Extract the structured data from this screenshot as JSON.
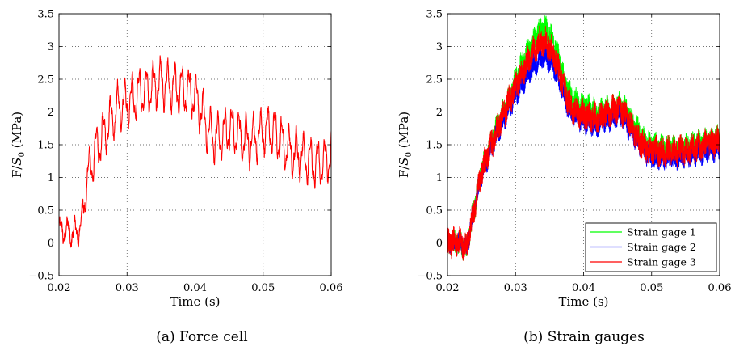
{
  "chart_data": [
    {
      "type": "line",
      "caption": "(a) Force cell",
      "xlabel": "Time (s)",
      "ylabel": "F/S0 (MPa)",
      "ylabel_main": "F/",
      "ylabel_sym": "S",
      "ylabel_sub": "0",
      "ylabel_unit": " (MPa)",
      "xlim": [
        0.02,
        0.06
      ],
      "ylim": [
        -0.5,
        3.5
      ],
      "xticks": [
        0.02,
        0.03,
        0.04,
        0.05,
        0.06
      ],
      "xtick_labels": [
        "0.02",
        "0.03",
        "0.04",
        "0.05",
        "0.06"
      ],
      "yticks": [
        -0.5,
        0,
        0.5,
        1,
        1.5,
        2,
        2.5,
        3,
        3.5
      ],
      "ytick_labels": [
        "−0.5",
        "0",
        "0.5",
        "1",
        "1.5",
        "2",
        "2.5",
        "3",
        "3.5"
      ],
      "grid": true,
      "series": [
        {
          "color": "#ff0000",
          "oscillation_amplitude": 0.3,
          "envelope": {
            "x": [
              0.02,
              0.021,
              0.022,
              0.023,
              0.0233,
              0.024,
              0.025,
              0.026,
              0.027,
              0.028,
              0.029,
              0.03,
              0.031,
              0.032,
              0.033,
              0.034,
              0.035,
              0.036,
              0.037,
              0.038,
              0.039,
              0.04,
              0.041,
              0.042,
              0.043,
              0.044,
              0.045,
              0.046,
              0.047,
              0.048,
              0.049,
              0.05,
              0.051,
              0.052,
              0.053,
              0.054,
              0.055,
              0.056,
              0.057,
              0.058,
              0.059,
              0.06
            ],
            "y": [
              0.2,
              0.18,
              0.15,
              0.2,
              0.3,
              0.9,
              1.3,
              1.55,
              1.75,
              1.95,
              2.1,
              2.15,
              2.2,
              2.3,
              2.35,
              2.4,
              2.45,
              2.4,
              2.38,
              2.35,
              2.3,
              2.25,
              2.0,
              1.7,
              1.6,
              1.65,
              1.75,
              1.7,
              1.6,
              1.55,
              1.6,
              1.7,
              1.75,
              1.65,
              1.5,
              1.4,
              1.35,
              1.3,
              1.25,
              1.2,
              1.25,
              1.35
            ]
          }
        }
      ]
    },
    {
      "type": "line",
      "caption": "(b) Strain gauges",
      "xlabel": "Time (s)",
      "ylabel": "F/S0 (MPa)",
      "ylabel_main": "F/",
      "ylabel_sym": "S",
      "ylabel_sub": "0",
      "ylabel_unit": " (MPa)",
      "xlim": [
        0.02,
        0.06
      ],
      "ylim": [
        -0.5,
        3.5
      ],
      "xticks": [
        0.02,
        0.03,
        0.04,
        0.05,
        0.06
      ],
      "xtick_labels": [
        "0.02",
        "0.03",
        "0.04",
        "0.05",
        "0.06"
      ],
      "yticks": [
        -0.5,
        0,
        0.5,
        1,
        1.5,
        2,
        2.5,
        3,
        3.5
      ],
      "ytick_labels": [
        "−0.5",
        "0",
        "0.5",
        "1",
        "1.5",
        "2",
        "2.5",
        "3",
        "3.5"
      ],
      "grid": true,
      "legend_position": "bottom-right",
      "series": [
        {
          "name": "Strain gage 1",
          "color": "#00ff00",
          "noise_amplitude": 0.17,
          "envelope": {
            "x": [
              0.02,
              0.022,
              0.0228,
              0.0235,
              0.025,
              0.027,
              0.029,
              0.031,
              0.033,
              0.034,
              0.035,
              0.036,
              0.037,
              0.038,
              0.039,
              0.04,
              0.042,
              0.044,
              0.045,
              0.046,
              0.047,
              0.048,
              0.049,
              0.05,
              0.052,
              0.054,
              0.056,
              0.058,
              0.06
            ],
            "y": [
              0.0,
              0.0,
              -0.1,
              0.3,
              1.1,
              1.7,
              2.2,
              2.75,
              3.15,
              3.28,
              3.2,
              2.95,
              2.55,
              2.25,
              2.15,
              2.1,
              2.0,
              2.05,
              2.1,
              2.05,
              1.9,
              1.7,
              1.55,
              1.5,
              1.45,
              1.45,
              1.5,
              1.55,
              1.6
            ]
          }
        },
        {
          "name": "Strain gage 2",
          "color": "#0000ff",
          "noise_amplitude": 0.15,
          "envelope": {
            "x": [
              0.02,
              0.022,
              0.0228,
              0.0235,
              0.025,
              0.027,
              0.029,
              0.031,
              0.033,
              0.034,
              0.035,
              0.036,
              0.037,
              0.038,
              0.039,
              0.04,
              0.042,
              0.044,
              0.045,
              0.046,
              0.047,
              0.048,
              0.049,
              0.05,
              0.052,
              0.054,
              0.056,
              0.058,
              0.06
            ],
            "y": [
              0.0,
              0.0,
              -0.08,
              0.3,
              1.05,
              1.6,
              2.05,
              2.45,
              2.75,
              2.85,
              2.8,
              2.6,
              2.3,
              2.0,
              1.9,
              1.85,
              1.8,
              1.9,
              1.95,
              1.9,
              1.7,
              1.55,
              1.4,
              1.3,
              1.3,
              1.3,
              1.35,
              1.4,
              1.45
            ]
          }
        },
        {
          "name": "Strain gage 3",
          "color": "#ff0000",
          "noise_amplitude": 0.2,
          "envelope": {
            "x": [
              0.02,
              0.022,
              0.0228,
              0.0235,
              0.025,
              0.027,
              0.029,
              0.031,
              0.033,
              0.034,
              0.035,
              0.036,
              0.037,
              0.038,
              0.039,
              0.04,
              0.042,
              0.044,
              0.045,
              0.046,
              0.047,
              0.048,
              0.049,
              0.05,
              0.052,
              0.054,
              0.056,
              0.058,
              0.06
            ],
            "y": [
              0.0,
              0.0,
              -0.1,
              0.3,
              1.1,
              1.65,
              2.15,
              2.6,
              3.0,
              3.1,
              3.0,
              2.75,
              2.4,
              2.1,
              2.0,
              1.95,
              1.9,
              2.0,
              2.05,
              2.0,
              1.8,
              1.6,
              1.45,
              1.4,
              1.4,
              1.4,
              1.45,
              1.5,
              1.55
            ]
          }
        }
      ]
    }
  ]
}
